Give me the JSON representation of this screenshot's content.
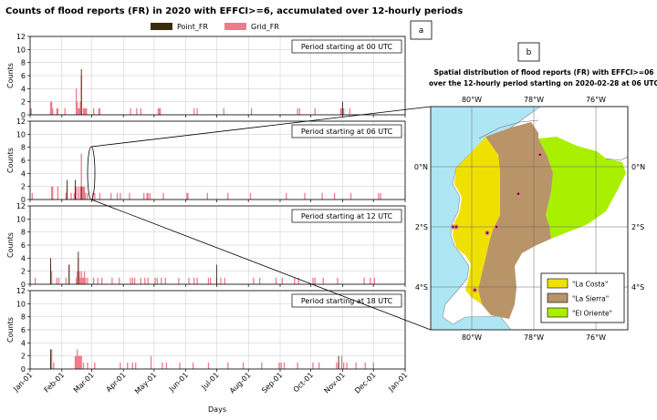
{
  "title": "Counts of flood reports (FR) in 2020 with EFFCI>=6, accumulated over 12-hourly periods",
  "panel_a_label": "a",
  "panel_b_label": "b",
  "legend": [
    "Point_FR",
    "Grid_FR"
  ],
  "colors": {
    "point_fr": "#3a2a10",
    "grid_fr": "#ee7a8c",
    "sea": "#aee6f5",
    "costa": "#f0e000",
    "sierra": "#b89468",
    "oriente": "#a8f000"
  },
  "x_axis": {
    "label": "Days",
    "ticks": [
      "Jan-01",
      "Feb-01",
      "Mar-01",
      "Apr-01",
      "May-01",
      "Jun-01",
      "Jul-01",
      "Aug-01",
      "Sep-01",
      "Oct-01",
      "Nov-01",
      "Dec-01",
      "Jan-01"
    ],
    "tick_days": [
      0,
      31,
      60,
      91,
      121,
      152,
      182,
      213,
      244,
      274,
      305,
      335,
      366
    ]
  },
  "y_axis": {
    "label": "Counts",
    "ticks": [
      "0",
      "2",
      "4",
      "6",
      "8",
      "10",
      "12"
    ],
    "range": [
      0,
      12
    ]
  },
  "chart_data": [
    {
      "type": "bar",
      "panel": "Period starting at 00 UTC",
      "series": [
        {
          "name": "Grid_FR",
          "days": [
            1,
            20,
            21,
            22,
            26,
            27,
            34,
            45,
            46,
            47,
            48,
            49,
            50,
            52,
            53,
            54,
            55,
            62,
            67,
            68,
            98,
            104,
            108,
            125,
            126,
            127,
            160,
            163,
            189,
            216,
            261,
            263,
            278,
            303,
            304,
            306,
            312
          ],
          "values": [
            1,
            2,
            2,
            1,
            1,
            1,
            1,
            4,
            2,
            1,
            1,
            2,
            6,
            1,
            1,
            1,
            1,
            1,
            1,
            1,
            1,
            1,
            1,
            1,
            1,
            1,
            1,
            1,
            1,
            1,
            1,
            1,
            1,
            1,
            1,
            1,
            1
          ]
        },
        {
          "name": "Point_FR",
          "days": [
            50,
            305
          ],
          "values": [
            7,
            2
          ]
        }
      ]
    },
    {
      "type": "bar",
      "panel": "Period starting at 06 UTC",
      "series": [
        {
          "name": "Grid_FR",
          "days": [
            2,
            21,
            22,
            27,
            35,
            36,
            40,
            43,
            44,
            45,
            47,
            49,
            50,
            51,
            52,
            53,
            54,
            56,
            61,
            63,
            68,
            79,
            85,
            88,
            97,
            111,
            114,
            115,
            117,
            130,
            153,
            154,
            173,
            193,
            215,
            250,
            268,
            285,
            297,
            313,
            340,
            342
          ],
          "values": [
            1,
            2,
            2,
            2,
            1,
            2,
            1,
            1,
            2,
            2,
            2,
            2,
            7,
            2,
            2,
            2,
            1,
            1,
            1,
            1,
            1,
            1,
            1,
            1,
            1,
            1,
            1,
            1,
            1,
            1,
            1,
            1,
            1,
            1,
            1,
            1,
            1,
            1,
            1,
            1,
            1,
            1
          ]
        },
        {
          "name": "Point_FR",
          "days": [
            36,
            44,
            50
          ],
          "values": [
            3,
            3,
            2
          ]
        }
      ]
    },
    {
      "type": "bar",
      "panel": "Period starting at 12 UTC",
      "series": [
        {
          "name": "Grid_FR",
          "days": [
            5,
            20,
            21,
            26,
            28,
            35,
            38,
            45,
            46,
            47,
            48,
            49,
            50,
            51,
            52,
            53,
            54,
            56,
            62,
            66,
            70,
            80,
            87,
            98,
            100,
            102,
            108,
            112,
            115,
            122,
            124,
            128,
            132,
            145,
            155,
            160,
            163,
            174,
            176,
            182,
            186,
            190,
            218,
            224,
            240,
            246,
            258,
            262,
            276,
            278,
            286,
            300,
            326,
            332,
            336
          ],
          "values": [
            1,
            3,
            2,
            1,
            1,
            1,
            3,
            1,
            2,
            4,
            2,
            1,
            2,
            1,
            1,
            2,
            1,
            1,
            1,
            1,
            1,
            1,
            1,
            1,
            1,
            1,
            1,
            1,
            1,
            1,
            1,
            1,
            1,
            1,
            1,
            1,
            1,
            1,
            1,
            1,
            1,
            1,
            1,
            1,
            1,
            1,
            1,
            1,
            1,
            1,
            1,
            1,
            1,
            1,
            1
          ]
        },
        {
          "name": "Point_FR",
          "days": [
            20,
            38,
            47,
            182
          ],
          "values": [
            4,
            3,
            5,
            3
          ]
        }
      ]
    },
    {
      "type": "bar",
      "panel": "Period starting at 18 UTC",
      "series": [
        {
          "name": "Grid_FR",
          "days": [
            20,
            21,
            23,
            44,
            45,
            46,
            47,
            48,
            49,
            50,
            52,
            56,
            63,
            88,
            95,
            100,
            103,
            118,
            129,
            133,
            146,
            159,
            174,
            193,
            208,
            226,
            243,
            245,
            248,
            261,
            276,
            282,
            299,
            301,
            304,
            306,
            309,
            318,
            327,
            335
          ],
          "values": [
            2,
            3,
            1,
            2,
            2,
            3,
            2,
            2,
            2,
            2,
            1,
            1,
            1,
            1,
            1,
            1,
            1,
            2,
            1,
            1,
            1,
            1,
            1,
            1,
            1,
            1,
            1,
            1,
            1,
            1,
            1,
            1,
            1,
            1,
            2,
            1,
            1,
            1,
            1,
            1
          ]
        },
        {
          "name": "Point_FR",
          "days": [
            20,
            301
          ],
          "values": [
            3,
            2
          ]
        }
      ]
    }
  ],
  "map": {
    "title_line1": "Spatial distribution of flood reports (FR) with EFFCI>=06",
    "title_line2": "over the 12-hourly period starting on 2020-02-28 at 06 UTC",
    "lon_ticks": [
      "80°W",
      "78°W",
      "76°W"
    ],
    "lat_ticks": [
      "0°N",
      "2°S",
      "4°S"
    ],
    "legend": [
      "\"La Costa\"",
      "\"La Sierra\"",
      "\"El Oriente\""
    ],
    "reports": [
      {
        "lon": -77.8,
        "lat": 0.4
      },
      {
        "lon": -78.5,
        "lat": -0.9
      },
      {
        "lon": -80.6,
        "lat": -2.0
      },
      {
        "lon": -80.5,
        "lat": -2.0
      },
      {
        "lon": -79.2,
        "lat": -2.0
      },
      {
        "lon": -79.5,
        "lat": -2.2
      },
      {
        "lon": -79.9,
        "lat": -4.1
      }
    ]
  }
}
